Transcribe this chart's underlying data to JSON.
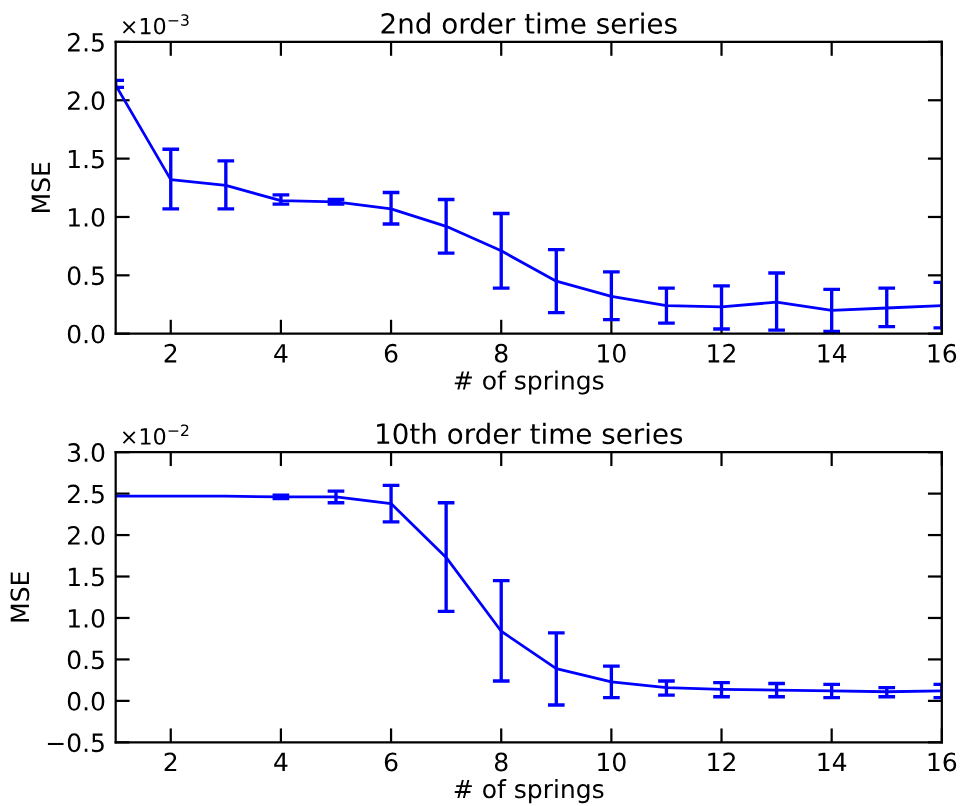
{
  "chart_data": [
    {
      "type": "line",
      "title": "2nd order time series",
      "xlabel": "# of springs",
      "ylabel": "MSE",
      "annotations": [
        "×10$^{−3}$"
      ],
      "x": [
        1,
        2,
        3,
        4,
        5,
        6,
        7,
        8,
        9,
        10,
        11,
        12,
        13,
        14,
        15,
        16
      ],
      "series": [
        {
          "color": "#0000ff",
          "values": [
            2.13,
            1.32,
            1.27,
            1.14,
            1.13,
            1.07,
            0.92,
            0.71,
            0.45,
            0.32,
            0.24,
            0.23,
            0.27,
            0.2,
            0.22,
            0.24
          ],
          "errors": [
            [
              2.11,
              2.17
            ],
            [
              1.07,
              1.58
            ],
            [
              1.07,
              1.48
            ],
            [
              1.11,
              1.19
            ],
            [
              1.11,
              1.15
            ],
            [
              0.94,
              1.21
            ],
            [
              0.69,
              1.15
            ],
            [
              0.39,
              1.03
            ],
            [
              0.18,
              0.72
            ],
            [
              0.12,
              0.53
            ],
            [
              0.09,
              0.39
            ],
            [
              0.04,
              0.41
            ],
            [
              0.03,
              0.52
            ],
            [
              0.02,
              0.38
            ],
            [
              0.06,
              0.39
            ],
            [
              0.05,
              0.44
            ]
          ]
        }
      ],
      "xlim": [
        1,
        16
      ],
      "xticks": [
        2,
        4,
        6,
        8,
        10,
        12,
        14,
        16
      ],
      "ylim": [
        0,
        2.5
      ],
      "yticks": [
        {
          "value": 0,
          "label": "0.0"
        },
        {
          "value": 0.5,
          "label": "0.5"
        },
        {
          "value": 1,
          "label": "1.0"
        },
        {
          "value": 1.5,
          "label": "1.5"
        },
        {
          "value": 2,
          "label": "2.0"
        },
        {
          "value": 2.5,
          "label": "2.5"
        }
      ],
      "grid": false,
      "legend": false,
      "marker": "none",
      "line_style": "solid"
    },
    {
      "type": "line",
      "title": "10th order time series",
      "xlabel": "# of springs",
      "ylabel": "MSE",
      "annotations": [
        "×10$^{−2}$"
      ],
      "x": [
        1,
        2,
        3,
        4,
        5,
        6,
        7,
        8,
        9,
        10,
        11,
        12,
        13,
        14,
        15,
        16
      ],
      "series": [
        {
          "color": "#0000ff",
          "values": [
            2.47,
            2.47,
            2.47,
            2.46,
            2.46,
            2.38,
            1.73,
            0.84,
            0.39,
            0.23,
            0.16,
            0.14,
            0.13,
            0.12,
            0.11,
            0.12
          ],
          "errors": [
            null,
            null,
            null,
            [
              2.44,
              2.48
            ],
            [
              2.39,
              2.53
            ],
            [
              2.16,
              2.6
            ],
            [
              1.08,
              2.39
            ],
            [
              0.24,
              1.45
            ],
            [
              -0.05,
              0.82
            ],
            [
              0.04,
              0.42
            ],
            [
              0.07,
              0.24
            ],
            [
              0.05,
              0.22
            ],
            [
              0.05,
              0.21
            ],
            [
              0.04,
              0.2
            ],
            [
              0.05,
              0.16
            ],
            [
              0.04,
              0.2
            ]
          ]
        }
      ],
      "xlim": [
        1,
        16
      ],
      "xticks": [
        2,
        4,
        6,
        8,
        10,
        12,
        14,
        16
      ],
      "ylim": [
        -0.5,
        3
      ],
      "yticks": [
        {
          "value": -0.5,
          "label": "−0.5"
        },
        {
          "value": 0,
          "label": "0.0"
        },
        {
          "value": 0.5,
          "label": "0.5"
        },
        {
          "value": 1,
          "label": "1.0"
        },
        {
          "value": 1.5,
          "label": "1.5"
        },
        {
          "value": 2,
          "label": "2.0"
        },
        {
          "value": 2.5,
          "label": "2.5"
        },
        {
          "value": 3,
          "label": "3.0"
        }
      ],
      "grid": false,
      "legend": false,
      "marker": "none",
      "line_style": "solid"
    }
  ]
}
